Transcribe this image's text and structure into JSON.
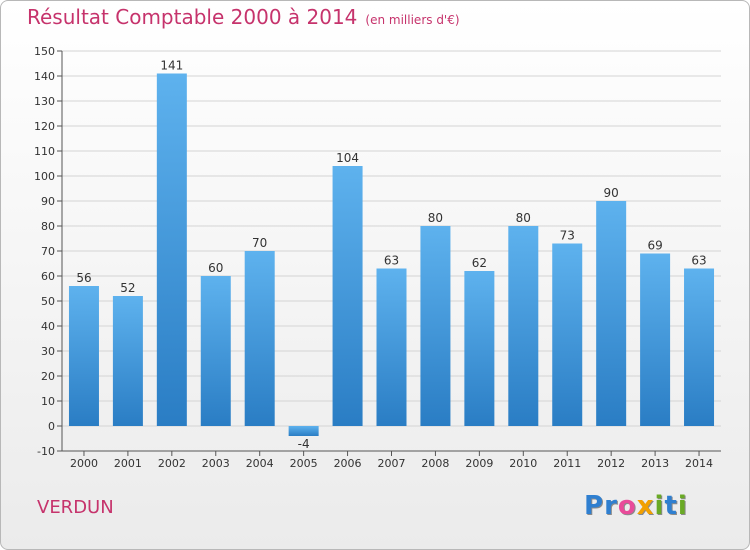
{
  "title": "Résultat Comptable 2000 à 2014",
  "unit": "(en milliers d'€)",
  "town": "VERDUN",
  "logo": {
    "letters": [
      {
        "ch": "P",
        "color": "#2f7fd0"
      },
      {
        "ch": "r",
        "color": "#2f7fd0"
      },
      {
        "ch": "o",
        "color": "#e94b9a"
      },
      {
        "ch": "x",
        "color": "#f2a000"
      },
      {
        "ch": "i",
        "color": "#6aaa25"
      },
      {
        "ch": "t",
        "color": "#2f7fd0"
      },
      {
        "ch": "i",
        "color": "#6aaa25"
      }
    ]
  },
  "colors": {
    "title": "#c6336c",
    "bar_top": "#5eb2ee",
    "bar_bottom": "#2a7dc4",
    "grid": "#d4d4d4"
  },
  "chart_data": {
    "type": "bar",
    "categories": [
      "2000",
      "2001",
      "2002",
      "2003",
      "2004",
      "2005",
      "2006",
      "2007",
      "2008",
      "2009",
      "2010",
      "2011",
      "2012",
      "2013",
      "2014"
    ],
    "values": [
      56,
      52,
      141,
      60,
      70,
      -4,
      104,
      63,
      80,
      62,
      80,
      73,
      90,
      69,
      63
    ],
    "ylim": [
      -10,
      150
    ],
    "yticks": [
      -10,
      0,
      10,
      20,
      30,
      40,
      50,
      60,
      70,
      80,
      90,
      100,
      110,
      120,
      130,
      140,
      150
    ],
    "grid": true,
    "legend": "none"
  }
}
